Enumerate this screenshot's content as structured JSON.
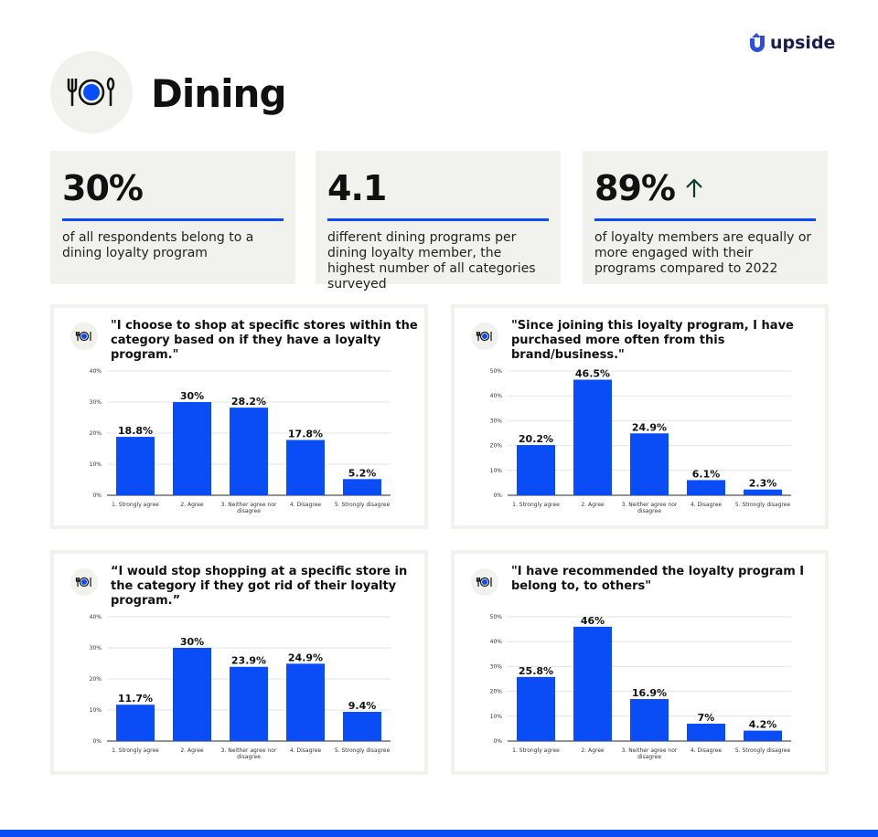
{
  "brand": {
    "name": "upside",
    "accent": "#0a4cf5"
  },
  "header": {
    "title": "Dining",
    "icon": "plate-cutlery-icon"
  },
  "stats": [
    {
      "value": "30%",
      "text": "of all respondents belong to a dining loyalty program"
    },
    {
      "value": "4.1",
      "text": "different dining programs per dining loyalty member, the highest number of all categories surveyed"
    },
    {
      "value": "89%",
      "text": "of loyalty members are equally or more engaged with their programs compared to 2022",
      "icon": "arrow-up-icon"
    }
  ],
  "chart_data": [
    {
      "type": "bar",
      "title": "\"I choose to shop at specific stores within the category based on if they have a loyalty program.\"",
      "categories": [
        "1. Strongly agree",
        "2. Agree",
        "3. Neither agree nor disagree",
        "4. Disagree",
        "5. Strongly disagree"
      ],
      "values": [
        18.8,
        30,
        28.2,
        17.8,
        5.2
      ],
      "labels": [
        "18.8%",
        "30%",
        "28.2%",
        "17.8%",
        "5.2%"
      ],
      "ylim": [
        0,
        40
      ],
      "yticks": [
        "0%",
        "10%",
        "20%",
        "30%",
        "40%"
      ],
      "grid": true
    },
    {
      "type": "bar",
      "title": "\"Since joining this loyalty program, I have purchased more often from this brand/business.\"",
      "categories": [
        "1. Strongly agree",
        "2. Agree",
        "3. Neither agree nor disagree",
        "4. Disagree",
        "5. Strongly disagree"
      ],
      "values": [
        20.2,
        46.5,
        24.9,
        6.1,
        2.3
      ],
      "labels": [
        "20.2%",
        "46.5%",
        "24.9%",
        "6.1%",
        "2.3%"
      ],
      "ylim": [
        0,
        50
      ],
      "yticks": [
        "0%",
        "10%",
        "20%",
        "30%",
        "40%",
        "50%"
      ],
      "grid": true
    },
    {
      "type": "bar",
      "title": "“I would stop shopping at a specific store in the category if they got rid of their loyalty program.”",
      "categories": [
        "1. Strongly agree",
        "2. Agree",
        "3. Neither agree nor disagree",
        "4. Disagree",
        "5. Strongly disagree"
      ],
      "values": [
        11.7,
        30,
        23.9,
        24.9,
        9.4
      ],
      "labels": [
        "11.7%",
        "30%",
        "23.9%",
        "24.9%",
        "9.4%"
      ],
      "ylim": [
        0,
        40
      ],
      "yticks": [
        "0%",
        "10%",
        "20%",
        "30%",
        "40%"
      ],
      "grid": true
    },
    {
      "type": "bar",
      "title": "\"I have recommended the loyalty program I belong to, to others\"",
      "categories": [
        "1. Strongly agree",
        "2. Agree",
        "3. Neither agree nor disagree",
        "4. Disagree",
        "5. Strongly disagree"
      ],
      "values": [
        25.8,
        46,
        16.9,
        7,
        4.2
      ],
      "labels": [
        "25.8%",
        "46%",
        "16.9%",
        "7%",
        "4.2%"
      ],
      "ylim": [
        0,
        50
      ],
      "yticks": [
        "0%",
        "10%",
        "20%",
        "30%",
        "40%",
        "50%"
      ],
      "grid": true
    }
  ]
}
